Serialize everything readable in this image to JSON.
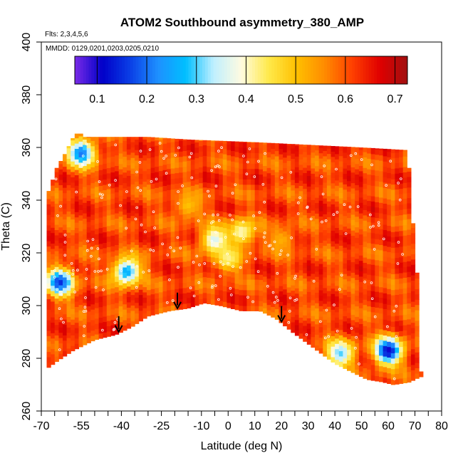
{
  "chart_data": {
    "type": "heatmap",
    "title": "ATOM2 Southbound asymmetry_380_AMP",
    "flights_label": "Flts: 2,3,4,5,6",
    "dates_label": "MMDD: 0129,0201,0203,0205,0210",
    "xlabel": "Latitude (deg N)",
    "ylabel": "Theta (C)",
    "xlim": [
      -70,
      80
    ],
    "ylim": [
      260,
      400
    ],
    "x_tick_labels": [
      "-70",
      "-55",
      "-40",
      "-25",
      "-10",
      "0",
      "10",
      "20",
      "30",
      "40",
      "50",
      "60",
      "70",
      "80"
    ],
    "x_tick_values": [
      -70,
      -55,
      -40,
      -25,
      -10,
      0,
      10,
      20,
      30,
      40,
      50,
      60,
      70,
      80
    ],
    "x_minor_ticks": [
      -65,
      -60,
      -50,
      -45,
      -35,
      -30,
      -20,
      -15,
      -5,
      5,
      15,
      25,
      35,
      45,
      55,
      65,
      75
    ],
    "y_tick_labels": [
      "260",
      "280",
      "300",
      "320",
      "340",
      "360",
      "380",
      "400"
    ],
    "y_tick_values": [
      260,
      280,
      300,
      320,
      340,
      360,
      380,
      400
    ],
    "colorbar": {
      "min": 0.055,
      "max": 0.725,
      "tick_labels": [
        "0.1",
        "0.2",
        "0.3",
        "0.4",
        "0.5",
        "0.6",
        "0.7"
      ],
      "tick_values": [
        0.1,
        0.2,
        0.3,
        0.4,
        0.5,
        0.6,
        0.7
      ],
      "colors": [
        "#7a2be8",
        "#0000c8",
        "#0a3fe6",
        "#1e90ff",
        "#00bfff",
        "#bfefff",
        "#fffbe0",
        "#ffe94a",
        "#ffc000",
        "#ff8c00",
        "#ff4000",
        "#e00000",
        "#a01010"
      ]
    },
    "domain_upper": [
      [
        -68,
        342
      ],
      [
        -67,
        344
      ],
      [
        -66,
        347
      ],
      [
        -65,
        350
      ],
      [
        -64,
        353
      ],
      [
        -62,
        356
      ],
      [
        -60,
        360
      ],
      [
        -58,
        364
      ],
      [
        -56,
        366
      ],
      [
        -54,
        364
      ],
      [
        -30,
        364
      ],
      [
        -15,
        363
      ],
      [
        10,
        362
      ],
      [
        30,
        361
      ],
      [
        50,
        360
      ],
      [
        67,
        359
      ],
      [
        68,
        350
      ],
      [
        69,
        335
      ],
      [
        70,
        320
      ],
      [
        72,
        300
      ],
      [
        72,
        275
      ]
    ],
    "domain_lower": [
      [
        -68,
        276
      ],
      [
        -64,
        279
      ],
      [
        -58,
        283
      ],
      [
        -50,
        287
      ],
      [
        -42,
        289
      ],
      [
        -36,
        292
      ],
      [
        -30,
        296
      ],
      [
        -22,
        298
      ],
      [
        -15,
        299
      ],
      [
        -9,
        301
      ],
      [
        -3,
        300
      ],
      [
        5,
        298
      ],
      [
        12,
        298
      ],
      [
        18,
        295
      ],
      [
        24,
        290
      ],
      [
        32,
        284
      ],
      [
        40,
        278
      ],
      [
        46,
        275
      ],
      [
        52,
        272
      ],
      [
        58,
        271
      ],
      [
        62,
        270
      ],
      [
        68,
        271
      ],
      [
        72,
        273
      ]
    ],
    "field_features": [
      {
        "lat": -55,
        "theta": 358,
        "value": 0.2
      },
      {
        "lat": -63,
        "theta": 309,
        "value": 0.15
      },
      {
        "lat": -38,
        "theta": 313,
        "value": 0.25
      },
      {
        "lat": 60,
        "theta": 283,
        "value": 0.1
      },
      {
        "lat": 42,
        "theta": 282,
        "value": 0.3
      },
      {
        "lat": -5,
        "theta": 325,
        "value": 0.35
      },
      {
        "lat": 5,
        "theta": 328,
        "value": 0.4
      },
      {
        "lat": -15,
        "theta": 338,
        "value": 0.5
      },
      {
        "lat": 0,
        "theta": 318,
        "value": 0.42
      },
      {
        "lat": 20,
        "theta": 325,
        "value": 0.52
      }
    ],
    "arrows_at_latitude": [
      -41,
      -19,
      20
    ]
  }
}
